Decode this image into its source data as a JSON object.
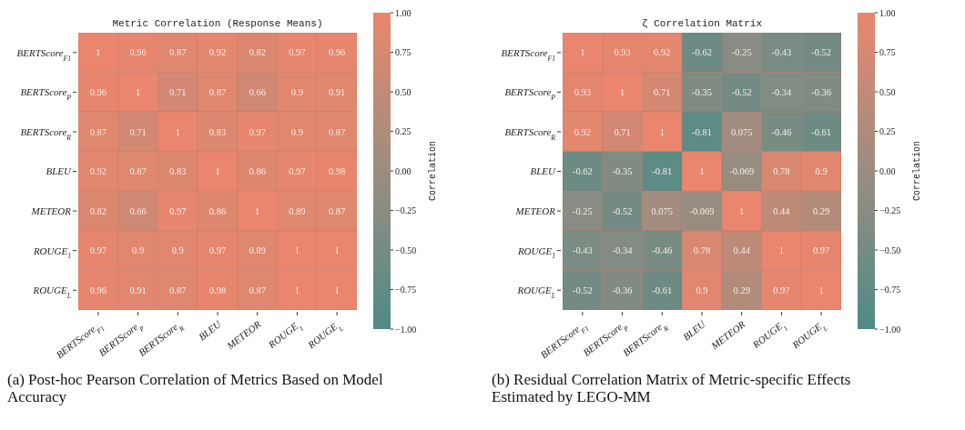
{
  "chart_data": [
    {
      "type": "heatmap",
      "title": "Metric Correlation (Response Means)",
      "categories": [
        "BERTScore$_{F1}$",
        "BERTScore$_{P}$",
        "BERTScore$_{R}$",
        "BLEU",
        "METEOR",
        "ROUGE$_{1}$",
        "ROUGE$_{L}$"
      ],
      "y_categories": [
        "BERTScore$_{F1}$",
        "BERTScore$_{P}$",
        "BERTScore$_{R}$",
        "BLEU",
        "METEOR",
        "ROUGE$_{1}$",
        "ROUGE$_{L}$"
      ],
      "cells": [
        [
          1,
          0.96,
          0.87,
          0.92,
          0.82,
          0.97,
          0.96
        ],
        [
          0.96,
          1,
          0.71,
          0.87,
          0.66,
          0.9,
          0.91
        ],
        [
          0.87,
          0.71,
          1,
          0.83,
          0.97,
          0.9,
          0.87
        ],
        [
          0.92,
          0.87,
          0.83,
          1,
          0.86,
          0.97,
          0.98
        ],
        [
          0.82,
          0.66,
          0.97,
          0.86,
          1,
          0.89,
          0.87
        ],
        [
          0.97,
          0.9,
          0.9,
          0.97,
          0.89,
          1,
          1
        ],
        [
          0.96,
          0.91,
          0.87,
          0.98,
          0.87,
          1,
          1
        ]
      ],
      "clim": [
        -1,
        1
      ],
      "cticks": [
        {
          "value": 1,
          "label": "1.00"
        },
        {
          "value": 0.75,
          "label": "0.75"
        },
        {
          "value": 0.5,
          "label": "0.50"
        },
        {
          "value": 0.25,
          "label": "0.25"
        },
        {
          "value": 0,
          "label": "0.00"
        },
        {
          "value": -0.25,
          "label": "−0.25"
        },
        {
          "value": -0.5,
          "label": "−0.50"
        },
        {
          "value": -0.75,
          "label": "−0.75"
        },
        {
          "value": -1,
          "label": "−1.00"
        }
      ],
      "clabel": "Correlation",
      "data_labels": true,
      "annotations": [
        "(a) Post-hoc Pearson Correlation of Metrics Based on Model Accuracy"
      ]
    },
    {
      "type": "heatmap",
      "title": "ζ Correlation Matrix",
      "categories": [
        "BERTScore$_{F1}$",
        "BERTScore$_{P}$",
        "BERTScore$_{R}$",
        "BLEU",
        "METEOR",
        "ROUGE$_{1}$",
        "ROUGE$_{L}$"
      ],
      "y_categories": [
        "BERTScore$_{F1}$",
        "BERTScore$_{P}$",
        "BERTScore$_{R}$",
        "BLEU",
        "METEOR",
        "ROUGE$_{1}$",
        "ROUGE$_{L}$"
      ],
      "cells": [
        [
          1,
          0.93,
          0.92,
          -0.62,
          -0.25,
          -0.43,
          -0.52
        ],
        [
          0.93,
          1,
          0.71,
          -0.35,
          -0.52,
          -0.34,
          -0.36
        ],
        [
          0.92,
          0.71,
          1,
          -0.81,
          0.075,
          -0.46,
          -0.61
        ],
        [
          -0.62,
          -0.35,
          -0.81,
          1,
          -0.069,
          0.78,
          0.9
        ],
        [
          -0.25,
          -0.52,
          0.075,
          -0.069,
          1,
          0.44,
          0.29
        ],
        [
          -0.43,
          -0.34,
          -0.46,
          0.78,
          0.44,
          1,
          0.97
        ],
        [
          -0.52,
          -0.36,
          -0.61,
          0.9,
          0.29,
          0.97,
          1
        ]
      ],
      "clim": [
        -1,
        1
      ],
      "cticks": [
        {
          "value": 1,
          "label": "1.00"
        },
        {
          "value": 0.75,
          "label": "0.75"
        },
        {
          "value": 0.5,
          "label": "0.50"
        },
        {
          "value": 0.25,
          "label": "0.25"
        },
        {
          "value": 0,
          "label": "0.00"
        },
        {
          "value": -0.25,
          "label": "−0.25"
        },
        {
          "value": -0.5,
          "label": "−0.50"
        },
        {
          "value": -0.75,
          "label": "−0.75"
        },
        {
          "value": -1,
          "label": "−1.00"
        }
      ],
      "clabel": "Correlation",
      "data_labels": true,
      "annotations": [
        "(b) Residual Correlation Matrix of Metric-specific Effects Estimated by LEGO-MM"
      ]
    }
  ]
}
